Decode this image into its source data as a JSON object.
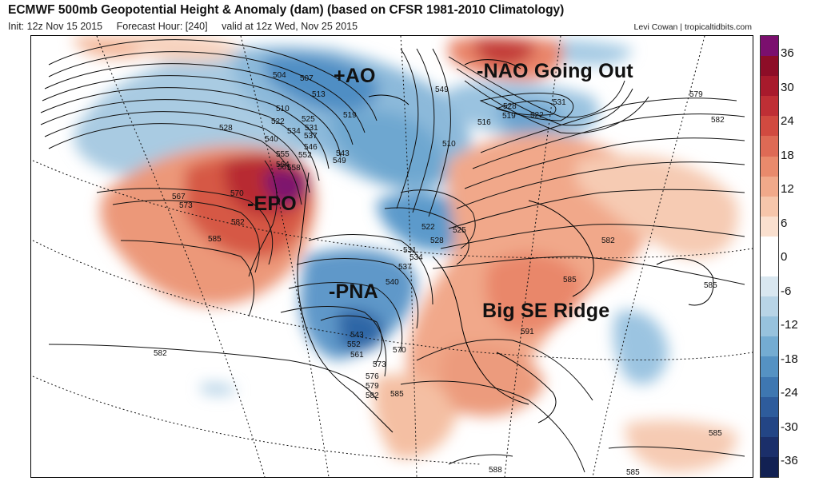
{
  "header": {
    "title": "ECMWF 500mb Geopotential Height & Anomaly (dam) (based on CFSR 1981-2010 Climatology)",
    "init": "Init: 12z Nov 15 2015",
    "forecast_hour": "Forecast Hour: [240]",
    "valid": "valid at 12z Wed, Nov 25 2015",
    "credit": "Levi Cowan | tropicaltidbits.com"
  },
  "annotations": {
    "ao": "+AO",
    "nao": "-NAO Going Out",
    "epo": "-EPO",
    "pna": "-PNA",
    "ridge": "Big SE Ridge"
  },
  "contour_labels": [
    "504",
    "507",
    "513",
    "510",
    "522",
    "525",
    "519",
    "528",
    "531",
    "534",
    "537",
    "540",
    "543",
    "546",
    "549",
    "552",
    "555",
    "558",
    "561",
    "564",
    "567",
    "570",
    "573",
    "576",
    "579",
    "582",
    "585",
    "588",
    "591",
    "516",
    "510"
  ],
  "colorbar": {
    "labels": [
      "36",
      "30",
      "24",
      "18",
      "12",
      "6",
      "0",
      "-6",
      "-12",
      "-18",
      "-24",
      "-30",
      "-36"
    ],
    "colors": [
      "#7b0f6e",
      "#8d0d27",
      "#a81a2c",
      "#bf2f35",
      "#d14a40",
      "#de6a55",
      "#e98a6c",
      "#f1a98a",
      "#f6c6ab",
      "#fae0cf",
      "#ffffff",
      "#ffffff",
      "#d9e7f0",
      "#b8d4e6",
      "#97c2dd",
      "#74acd2",
      "#5592c3",
      "#3e77b1",
      "#2e5c9c",
      "#234585",
      "#1b2f6a",
      "#122153"
    ]
  }
}
